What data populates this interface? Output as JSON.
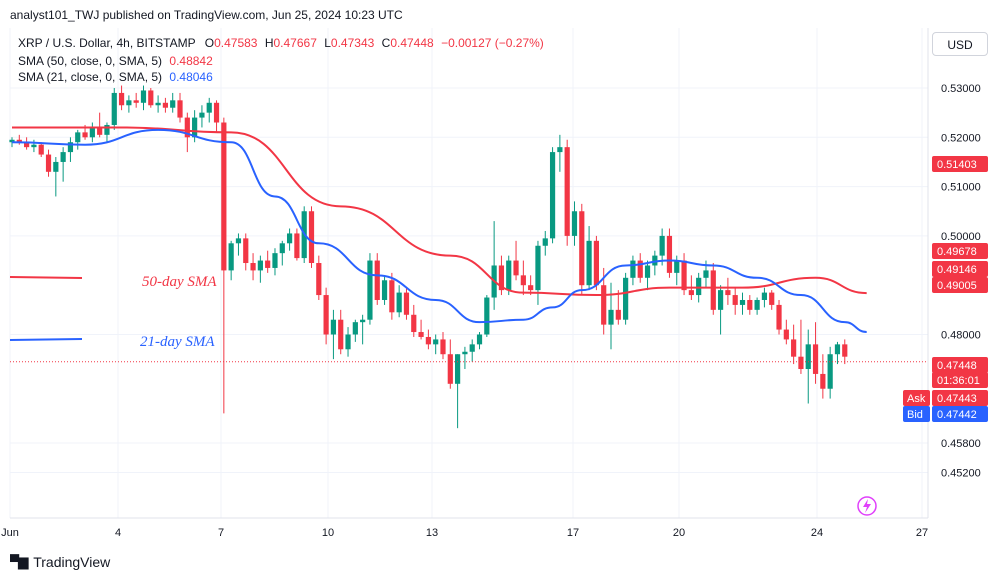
{
  "publisher_line": "analyst101_TWJ published on TradingView.com, Jun 25, 2024 10:23 UTC",
  "legend": {
    "symbol": "XRP / U.S. Dollar, 4h, BITSTAMP",
    "o_label": "O",
    "o": "0.47583",
    "h_label": "H",
    "h": "0.47667",
    "l_label": "L",
    "l": "0.47343",
    "c_label": "C",
    "c": "0.47448",
    "change": "−0.00127 (−0.27%)",
    "sma50_label": "SMA (50, close, 0, SMA, 5)",
    "sma50_value": "0.48842",
    "sma21_label": "SMA (21, close, 0, SMA, 5)",
    "sma21_value": "0.48046"
  },
  "currency_button": "USD",
  "annotations": {
    "sma50": "50-day SMA",
    "sma21": "21-day SMA"
  },
  "price_tags": [
    {
      "text": "0.51403",
      "color": "#f23645"
    },
    {
      "text": "0.49678",
      "color": "#f23645"
    },
    {
      "text": "0.49146",
      "color": "#f23645"
    },
    {
      "text": "0.49005",
      "color": "#f23645"
    },
    {
      "text": "0.47448",
      "color": "#f23645"
    },
    {
      "text": "01:36:01",
      "color": "#f23645"
    },
    {
      "text": "0.47443",
      "color": "#f23645"
    },
    {
      "text": "0.47442",
      "color": "#2962ff"
    }
  ],
  "ask_label": "Ask",
  "bid_label": "Bid",
  "footer_brand": "TradingView",
  "colors": {
    "up": "#089981",
    "down": "#f23645",
    "sma50": "#f23645",
    "sma21": "#2962ff"
  },
  "chart_data": {
    "type": "candlestick",
    "title": "XRP / U.S. Dollar, 4h, BITSTAMP",
    "y_ticks": [
      "0.53000",
      "0.52000",
      "0.51000",
      "0.50000",
      "0.48000",
      "0.45800",
      "0.45200"
    ],
    "x_ticks": [
      "Jun",
      "4",
      "7",
      "10",
      "13",
      "17",
      "20",
      "24",
      "27"
    ],
    "ylim": [
      0.451,
      0.535
    ],
    "grid": true,
    "last_price": 0.47448,
    "candles": [
      [
        0.519,
        0.52,
        0.518,
        0.5195
      ],
      [
        0.5195,
        0.5205,
        0.5185,
        0.519
      ],
      [
        0.519,
        0.52,
        0.5175,
        0.518
      ],
      [
        0.518,
        0.5195,
        0.517,
        0.5185
      ],
      [
        0.5185,
        0.519,
        0.516,
        0.5165
      ],
      [
        0.5165,
        0.5175,
        0.512,
        0.513
      ],
      [
        0.513,
        0.516,
        0.508,
        0.515
      ],
      [
        0.515,
        0.518,
        0.511,
        0.517
      ],
      [
        0.517,
        0.52,
        0.515,
        0.519
      ],
      [
        0.519,
        0.5215,
        0.5175,
        0.521
      ],
      [
        0.521,
        0.5225,
        0.5195,
        0.52
      ],
      [
        0.52,
        0.523,
        0.519,
        0.522
      ],
      [
        0.522,
        0.525,
        0.52,
        0.5205
      ],
      [
        0.5205,
        0.523,
        0.519,
        0.5225
      ],
      [
        0.5225,
        0.53,
        0.5215,
        0.529
      ],
      [
        0.529,
        0.5305,
        0.5255,
        0.5265
      ],
      [
        0.5265,
        0.5285,
        0.525,
        0.5275
      ],
      [
        0.5275,
        0.529,
        0.526,
        0.527
      ],
      [
        0.527,
        0.5305,
        0.5255,
        0.5295
      ],
      [
        0.5295,
        0.53,
        0.526,
        0.5265
      ],
      [
        0.5265,
        0.5285,
        0.525,
        0.527
      ],
      [
        0.527,
        0.528,
        0.525,
        0.526
      ],
      [
        0.526,
        0.529,
        0.525,
        0.5275
      ],
      [
        0.5275,
        0.529,
        0.523,
        0.524
      ],
      [
        0.524,
        0.525,
        0.517,
        0.52
      ],
      [
        0.52,
        0.5255,
        0.519,
        0.524
      ],
      [
        0.524,
        0.5265,
        0.522,
        0.525
      ],
      [
        0.525,
        0.528,
        0.523,
        0.527
      ],
      [
        0.527,
        0.5275,
        0.521,
        0.523
      ],
      [
        0.523,
        0.524,
        0.464,
        0.493
      ],
      [
        0.493,
        0.499,
        0.491,
        0.4985
      ],
      [
        0.4985,
        0.5005,
        0.496,
        0.4995
      ],
      [
        0.4995,
        0.5005,
        0.493,
        0.4945
      ],
      [
        0.4945,
        0.4965,
        0.491,
        0.493
      ],
      [
        0.493,
        0.496,
        0.4905,
        0.495
      ],
      [
        0.495,
        0.497,
        0.4925,
        0.4935
      ],
      [
        0.4935,
        0.4975,
        0.492,
        0.4965
      ],
      [
        0.4965,
        0.499,
        0.494,
        0.4985
      ],
      [
        0.4985,
        0.5015,
        0.497,
        0.5005
      ],
      [
        0.5005,
        0.5015,
        0.495,
        0.4955
      ],
      [
        0.4955,
        0.506,
        0.4945,
        0.505
      ],
      [
        0.505,
        0.506,
        0.4935,
        0.4945
      ],
      [
        0.4945,
        0.496,
        0.487,
        0.488
      ],
      [
        0.488,
        0.4895,
        0.478,
        0.48
      ],
      [
        0.48,
        0.485,
        0.475,
        0.483
      ],
      [
        0.483,
        0.485,
        0.476,
        0.477
      ],
      [
        0.477,
        0.4815,
        0.4755,
        0.48
      ],
      [
        0.48,
        0.483,
        0.4785,
        0.4825
      ],
      [
        0.4825,
        0.484,
        0.478,
        0.483
      ],
      [
        0.483,
        0.4965,
        0.482,
        0.495
      ],
      [
        0.495,
        0.4965,
        0.486,
        0.487
      ],
      [
        0.487,
        0.492,
        0.486,
        0.491
      ],
      [
        0.491,
        0.4925,
        0.483,
        0.4845
      ],
      [
        0.4845,
        0.49,
        0.4835,
        0.4885
      ],
      [
        0.4885,
        0.4895,
        0.483,
        0.484
      ],
      [
        0.484,
        0.486,
        0.4795,
        0.4805
      ],
      [
        0.4805,
        0.483,
        0.479,
        0.4795
      ],
      [
        0.4795,
        0.481,
        0.477,
        0.478
      ],
      [
        0.478,
        0.48,
        0.476,
        0.479
      ],
      [
        0.479,
        0.4805,
        0.475,
        0.476
      ],
      [
        0.476,
        0.479,
        0.469,
        0.47
      ],
      [
        0.47,
        0.476,
        0.461,
        0.476
      ],
      [
        0.476,
        0.4775,
        0.473,
        0.4765
      ],
      [
        0.4765,
        0.479,
        0.4745,
        0.478
      ],
      [
        0.478,
        0.4805,
        0.477,
        0.48
      ],
      [
        0.48,
        0.488,
        0.4795,
        0.4875
      ],
      [
        0.4875,
        0.503,
        0.485,
        0.494
      ],
      [
        0.494,
        0.496,
        0.488,
        0.489
      ],
      [
        0.489,
        0.496,
        0.488,
        0.495
      ],
      [
        0.495,
        0.499,
        0.491,
        0.492
      ],
      [
        0.492,
        0.495,
        0.488,
        0.49
      ],
      [
        0.49,
        0.492,
        0.488,
        0.489
      ],
      [
        0.489,
        0.499,
        0.486,
        0.498
      ],
      [
        0.498,
        0.501,
        0.496,
        0.4995
      ],
      [
        0.4995,
        0.518,
        0.4985,
        0.517
      ],
      [
        0.517,
        0.5205,
        0.513,
        0.518
      ],
      [
        0.518,
        0.5195,
        0.498,
        0.5
      ],
      [
        0.5,
        0.507,
        0.498,
        0.505
      ],
      [
        0.505,
        0.5065,
        0.488,
        0.49
      ],
      [
        0.49,
        0.502,
        0.489,
        0.499
      ],
      [
        0.499,
        0.5,
        0.489,
        0.49
      ],
      [
        0.49,
        0.4935,
        0.48,
        0.482
      ],
      [
        0.482,
        0.4905,
        0.477,
        0.485
      ],
      [
        0.485,
        0.489,
        0.482,
        0.483
      ],
      [
        0.483,
        0.4925,
        0.482,
        0.4915
      ],
      [
        0.4915,
        0.496,
        0.49,
        0.495
      ],
      [
        0.495,
        0.4965,
        0.4905,
        0.4915
      ],
      [
        0.4915,
        0.495,
        0.489,
        0.494
      ],
      [
        0.494,
        0.497,
        0.492,
        0.496
      ],
      [
        0.496,
        0.5015,
        0.494,
        0.5
      ],
      [
        0.5,
        0.5015,
        0.4915,
        0.4925
      ],
      [
        0.4925,
        0.496,
        0.49,
        0.495
      ],
      [
        0.495,
        0.4965,
        0.488,
        0.489
      ],
      [
        0.489,
        0.492,
        0.487,
        0.488
      ],
      [
        0.488,
        0.4925,
        0.4865,
        0.4915
      ],
      [
        0.4915,
        0.495,
        0.4895,
        0.493
      ],
      [
        0.493,
        0.4945,
        0.484,
        0.485
      ],
      [
        0.485,
        0.49,
        0.48,
        0.489
      ],
      [
        0.489,
        0.4915,
        0.486,
        0.488
      ],
      [
        0.488,
        0.4895,
        0.484,
        0.486
      ],
      [
        0.486,
        0.4885,
        0.484,
        0.487
      ],
      [
        0.487,
        0.488,
        0.484,
        0.485
      ],
      [
        0.485,
        0.4875,
        0.484,
        0.487
      ],
      [
        0.487,
        0.4895,
        0.4855,
        0.4885
      ],
      [
        0.4885,
        0.489,
        0.485,
        0.486
      ],
      [
        0.486,
        0.487,
        0.48,
        0.481
      ],
      [
        0.481,
        0.483,
        0.478,
        0.479
      ],
      [
        0.479,
        0.482,
        0.474,
        0.4755
      ],
      [
        0.4755,
        0.483,
        0.472,
        0.473
      ],
      [
        0.473,
        0.481,
        0.466,
        0.478
      ],
      [
        0.478,
        0.4825,
        0.47,
        0.472
      ],
      [
        0.472,
        0.476,
        0.467,
        0.469
      ],
      [
        0.469,
        0.4775,
        0.467,
        0.476
      ],
      [
        0.476,
        0.4785,
        0.474,
        0.478
      ],
      [
        0.478,
        0.479,
        0.474,
        0.4755
      ]
    ],
    "series": [
      {
        "name": "SMA (50, close, 0, SMA, 5)",
        "color": "#f23645",
        "x": [
          0,
          15,
          30,
          45,
          60,
          70,
          80,
          90,
          100,
          110,
          117
        ],
        "values": [
          0.522,
          0.522,
          0.521,
          0.506,
          0.496,
          0.4885,
          0.488,
          0.4895,
          0.4895,
          0.4915,
          0.4884
        ]
      },
      {
        "name": "SMA (21, close, 0, SMA, 5)",
        "color": "#2962ff",
        "x": [
          0,
          10,
          20,
          30,
          36,
          42,
          50,
          58,
          64,
          70,
          74,
          78,
          84,
          90,
          96,
          102,
          108,
          114,
          117
        ],
        "values": [
          0.519,
          0.5185,
          0.5215,
          0.519,
          0.508,
          0.4985,
          0.492,
          0.487,
          0.4825,
          0.483,
          0.4855,
          0.489,
          0.494,
          0.495,
          0.494,
          0.4915,
          0.488,
          0.4825,
          0.4805
        ]
      }
    ]
  }
}
